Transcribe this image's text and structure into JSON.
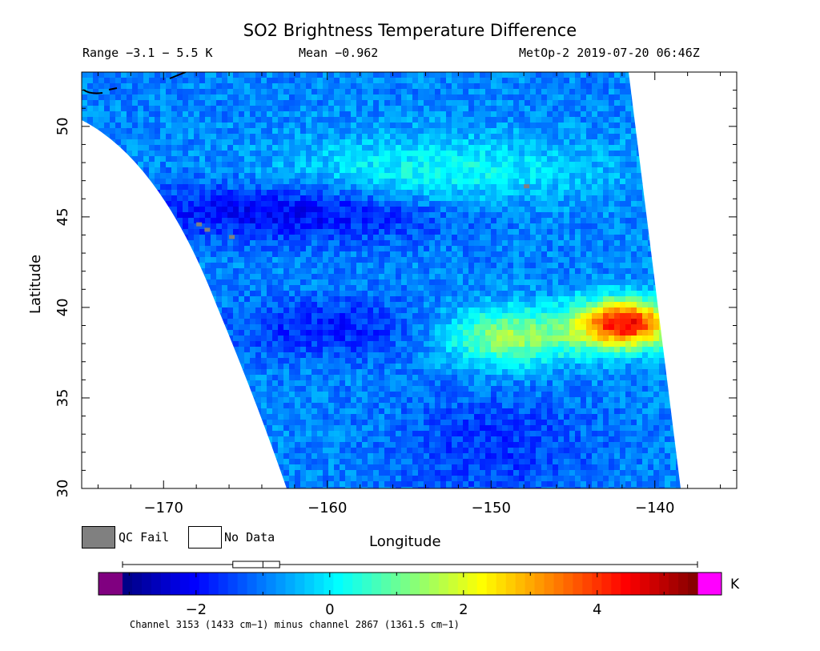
{
  "header": {
    "title": "SO2 Brightness Temperature Difference",
    "range": "Range −3.1 − 5.5 K",
    "mean": "Mean −0.962",
    "satellite": "MetOp-2 2019-07-20 06:46Z"
  },
  "legend": {
    "qc_fail": "QC Fail",
    "no_data": "No Data",
    "qc_color": "#808080"
  },
  "colorbar": {
    "unit": "K",
    "ticks": [
      "−2",
      "0",
      "2",
      "4"
    ],
    "tick_values": [
      -2,
      0,
      2,
      4
    ],
    "min": -3.1,
    "max": 5.5,
    "under_color": "#800080",
    "over_color": "#ff00ff",
    "box_stats": {
      "whisker_low": -3.1,
      "q1": -1.45,
      "median": -1.0,
      "q3": -0.75,
      "whisker_high": 5.5
    }
  },
  "footnote": "Channel 3153 (1433 cm−1) minus channel 2867 (1361.5 cm−1)",
  "chart_data": {
    "type": "heatmap",
    "title": "SO2 Brightness Temperature Difference",
    "xlabel": "Longitude",
    "ylabel": "Latitude",
    "xlim": [
      -175,
      -135
    ],
    "ylim": [
      30,
      53
    ],
    "xticks": [
      -170,
      -160,
      -150,
      -140
    ],
    "xtick_labels": [
      "−170",
      "−160",
      "−150",
      "−140"
    ],
    "yticks": [
      30,
      35,
      40,
      45,
      50
    ],
    "ytick_labels": [
      "30",
      "35",
      "40",
      "45",
      "50"
    ],
    "colormap": "jet",
    "value_range": [
      -3.1,
      5.5
    ],
    "mean": -0.962,
    "features": [
      {
        "name": "low band",
        "lon": [
          -172,
          -152
        ],
        "lat": [
          44.5,
          46.5
        ],
        "value": -2.2
      },
      {
        "name": "low band",
        "lon": [
          -165,
          -155
        ],
        "lat": [
          38,
          40
        ],
        "value": -1.8
      },
      {
        "name": "moderate cyan band",
        "lon": [
          -162,
          -145
        ],
        "lat": [
          46,
          49
        ],
        "value": 0.3
      },
      {
        "name": "plume",
        "lon": [
          -152,
          -146
        ],
        "lat": [
          37.5,
          39.5
        ],
        "value": 1.5
      },
      {
        "name": "hot spot",
        "lon": [
          -144,
          -140
        ],
        "lat": [
          38.5,
          40
        ],
        "value": 4.5
      },
      {
        "name": "low area",
        "lon": [
          -155,
          -145
        ],
        "lat": [
          30,
          35
        ],
        "value": -1.6
      }
    ]
  }
}
